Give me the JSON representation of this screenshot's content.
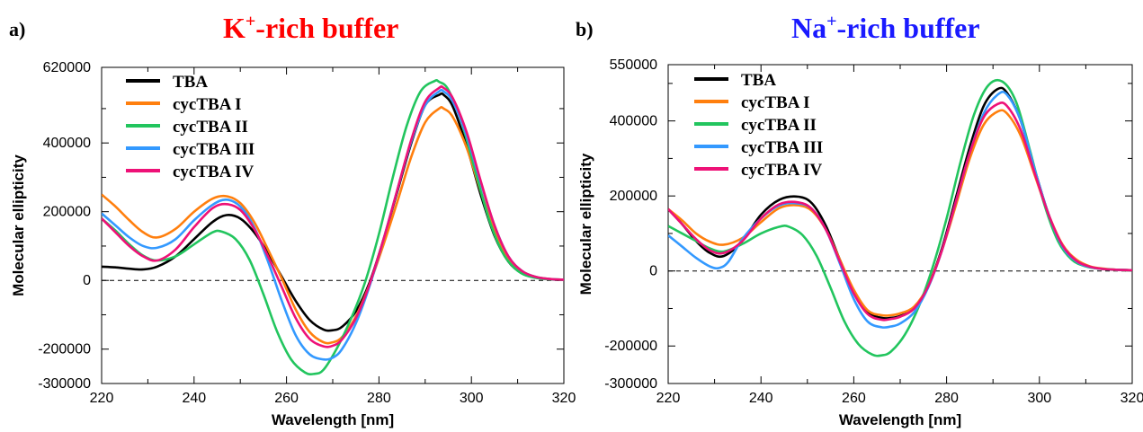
{
  "chart_data": [
    {
      "type": "line",
      "panel_label": "a)",
      "title_main": "K",
      "title_sup": "+",
      "title_rest": "-rich buffer",
      "title_color": "#ff0000",
      "xlabel": "Wavelength [nm]",
      "ylabel": "Molecular ellipticity",
      "xlim": [
        220,
        320
      ],
      "ylim": [
        -300000,
        620000
      ],
      "x_ticks": [
        220,
        240,
        260,
        280,
        300,
        320
      ],
      "x_tick_labels": [
        "220",
        "240",
        "260",
        "280",
        "300",
        "320"
      ],
      "y_ticks": [
        -300000,
        -200000,
        0,
        200000,
        400000,
        620000
      ],
      "y_tick_labels": [
        "-300000",
        "-200000",
        "0",
        "200000",
        "400000",
        "620000"
      ],
      "zero_line": true,
      "grid": false,
      "legend_position": "top-left",
      "series": [
        {
          "name": "TBA",
          "color": "#000000",
          "x": [
            220,
            223,
            226,
            229,
            232,
            236,
            240,
            244,
            247,
            250,
            253,
            256,
            259,
            262,
            265,
            268,
            270,
            272,
            275,
            278,
            281,
            284,
            287,
            290,
            293,
            294,
            296,
            299,
            302,
            305,
            308,
            311,
            314,
            317,
            320
          ],
          "y": [
            40000,
            38000,
            34000,
            32000,
            40000,
            70000,
            120000,
            170000,
            190000,
            180000,
            140000,
            80000,
            10000,
            -60000,
            -115000,
            -143000,
            -145000,
            -135000,
            -90000,
            -5000,
            120000,
            260000,
            400000,
            510000,
            540000,
            540000,
            505000,
            390000,
            250000,
            130000,
            55000,
            20000,
            8000,
            3000,
            2000
          ]
        },
        {
          "name": "cycTBA I",
          "color": "#ff7f0e",
          "x": [
            220,
            223,
            226,
            229,
            232,
            236,
            240,
            244,
            247,
            250,
            253,
            256,
            259,
            262,
            265,
            268,
            270,
            272,
            275,
            278,
            281,
            284,
            287,
            290,
            293,
            294,
            296,
            299,
            302,
            305,
            308,
            311,
            314,
            317,
            320
          ],
          "y": [
            250000,
            215000,
            175000,
            140000,
            125000,
            150000,
            200000,
            238000,
            245000,
            225000,
            170000,
            90000,
            5000,
            -85000,
            -150000,
            -180000,
            -180000,
            -165000,
            -105000,
            -10000,
            105000,
            230000,
            360000,
            460000,
            500000,
            500000,
            475000,
            385000,
            260000,
            145000,
            65000,
            25000,
            10000,
            4000,
            2000
          ]
        },
        {
          "name": "cycTBA II",
          "color": "#22c55e",
          "x": [
            220,
            223,
            226,
            229,
            232,
            236,
            240,
            244,
            246,
            249,
            252,
            255,
            258,
            261,
            264,
            266,
            268,
            271,
            274,
            277,
            280,
            283,
            286,
            289,
            292,
            293,
            295,
            298,
            301,
            304,
            307,
            310,
            313,
            316,
            320
          ],
          "y": [
            180000,
            145000,
            105000,
            72000,
            58000,
            70000,
            105000,
            140000,
            142000,
            120000,
            60000,
            -40000,
            -150000,
            -230000,
            -268000,
            -272000,
            -260000,
            -195000,
            -110000,
            -5000,
            135000,
            300000,
            450000,
            550000,
            580000,
            578000,
            555000,
            455000,
            310000,
            170000,
            75000,
            28000,
            10000,
            4000,
            2000
          ]
        },
        {
          "name": "cycTBA III",
          "color": "#3399ff",
          "x": [
            220,
            223,
            226,
            229,
            232,
            236,
            240,
            244,
            247,
            250,
            253,
            256,
            259,
            262,
            265,
            268,
            270,
            272,
            275,
            278,
            281,
            284,
            287,
            290,
            293,
            294,
            296,
            299,
            302,
            305,
            308,
            311,
            314,
            317,
            320
          ],
          "y": [
            195000,
            160000,
            125000,
            100000,
            95000,
            120000,
            175000,
            220000,
            235000,
            215000,
            155000,
            55000,
            -60000,
            -160000,
            -215000,
            -230000,
            -225000,
            -200000,
            -125000,
            -15000,
            120000,
            265000,
            405000,
            510000,
            550000,
            550000,
            520000,
            420000,
            285000,
            160000,
            70000,
            27000,
            10000,
            4000,
            2000
          ]
        },
        {
          "name": "cycTBA IV",
          "color": "#ee1177",
          "x": [
            220,
            223,
            226,
            229,
            232,
            236,
            240,
            244,
            247,
            250,
            253,
            256,
            259,
            262,
            265,
            268,
            270,
            272,
            275,
            278,
            281,
            284,
            287,
            290,
            293,
            294,
            296,
            299,
            302,
            305,
            308,
            311,
            314,
            317,
            320
          ],
          "y": [
            180000,
            140000,
            100000,
            70000,
            58000,
            90000,
            155000,
            210000,
            222000,
            205000,
            150000,
            70000,
            -20000,
            -110000,
            -170000,
            -192000,
            -190000,
            -172000,
            -110000,
            -10000,
            120000,
            265000,
            410000,
            520000,
            560000,
            560000,
            530000,
            430000,
            290000,
            160000,
            70000,
            27000,
            10000,
            4000,
            2000
          ]
        }
      ]
    },
    {
      "type": "line",
      "panel_label": "b)",
      "title_main": "Na",
      "title_sup": "+",
      "title_rest": "-rich buffer",
      "title_color": "#1a1aff",
      "xlabel": "Wavelength [nm]",
      "ylabel": "Molecular ellipticity",
      "xlim": [
        220,
        320
      ],
      "ylim": [
        -300000,
        550000
      ],
      "x_ticks": [
        220,
        240,
        260,
        280,
        300,
        320
      ],
      "x_tick_labels": [
        "220",
        "240",
        "260",
        "280",
        "300",
        "320"
      ],
      "y_ticks": [
        -300000,
        -200000,
        0,
        200000,
        400000,
        550000
      ],
      "y_tick_labels": [
        "-300000",
        "-200000",
        "0",
        "200000",
        "400000",
        "550000"
      ],
      "zero_line": true,
      "grid": false,
      "legend_position": "top-left",
      "series": [
        {
          "name": "TBA",
          "color": "#000000",
          "x": [
            220,
            223,
            226,
            229,
            232,
            236,
            240,
            244,
            248,
            251,
            254,
            257,
            260,
            263,
            266,
            268,
            270,
            273,
            276,
            279,
            282,
            285,
            288,
            291,
            293,
            296,
            299,
            302,
            305,
            308,
            311,
            314,
            317,
            320
          ],
          "y": [
            165000,
            125000,
            80000,
            48000,
            40000,
            80000,
            150000,
            190000,
            198000,
            180000,
            120000,
            30000,
            -55000,
            -110000,
            -125000,
            -125000,
            -120000,
            -100000,
            -40000,
            60000,
            195000,
            330000,
            440000,
            485000,
            475000,
            400000,
            270000,
            150000,
            65000,
            25000,
            10000,
            5000,
            3000,
            2000
          ]
        },
        {
          "name": "cycTBA I",
          "color": "#ff7f0e",
          "x": [
            220,
            223,
            226,
            229,
            232,
            236,
            240,
            244,
            248,
            251,
            254,
            257,
            260,
            263,
            266,
            268,
            270,
            273,
            276,
            279,
            282,
            285,
            288,
            291,
            293,
            296,
            299,
            302,
            305,
            308,
            311,
            314,
            317,
            320
          ],
          "y": [
            165000,
            135000,
            100000,
            78000,
            70000,
            88000,
            130000,
            168000,
            175000,
            160000,
            110000,
            30000,
            -50000,
            -105000,
            -118000,
            -118000,
            -113000,
            -95000,
            -40000,
            55000,
            175000,
            300000,
            390000,
            425000,
            420000,
            360000,
            255000,
            150000,
            70000,
            30000,
            12000,
            6000,
            3000,
            2000
          ]
        },
        {
          "name": "cycTBA II",
          "color": "#22c55e",
          "x": [
            220,
            223,
            226,
            229,
            232,
            236,
            240,
            244,
            246,
            249,
            252,
            255,
            258,
            261,
            264,
            266,
            268,
            271,
            274,
            277,
            280,
            283,
            286,
            289,
            292,
            295,
            298,
            301,
            304,
            307,
            310,
            313,
            316,
            320
          ],
          "y": [
            120000,
            100000,
            80000,
            60000,
            52000,
            72000,
            100000,
            118000,
            118000,
            95000,
            40000,
            -45000,
            -135000,
            -195000,
            -223000,
            -225000,
            -215000,
            -170000,
            -95000,
            10000,
            140000,
            290000,
            420000,
            495000,
            505000,
            450000,
            320000,
            180000,
            80000,
            30000,
            12000,
            6000,
            3000,
            2000
          ]
        },
        {
          "name": "cycTBA III",
          "color": "#3399ff",
          "x": [
            220,
            223,
            226,
            229,
            231,
            233,
            236,
            240,
            244,
            248,
            251,
            254,
            257,
            260,
            263,
            266,
            268,
            270,
            273,
            276,
            279,
            282,
            285,
            288,
            291,
            293,
            296,
            299,
            302,
            305,
            308,
            311,
            314,
            317,
            320
          ],
          "y": [
            95000,
            65000,
            35000,
            12000,
            8000,
            25000,
            85000,
            140000,
            175000,
            180000,
            165000,
            110000,
            20000,
            -75000,
            -135000,
            -150000,
            -148000,
            -140000,
            -110000,
            -45000,
            55000,
            185000,
            315000,
            420000,
            470000,
            470000,
            400000,
            270000,
            150000,
            65000,
            25000,
            10000,
            5000,
            3000,
            2000
          ]
        },
        {
          "name": "cycTBA IV",
          "color": "#ee1177",
          "x": [
            220,
            223,
            226,
            229,
            232,
            236,
            240,
            244,
            248,
            251,
            254,
            257,
            260,
            263,
            266,
            268,
            270,
            273,
            276,
            279,
            282,
            285,
            288,
            291,
            293,
            296,
            299,
            302,
            305,
            308,
            311,
            314,
            317,
            320
          ],
          "y": [
            165000,
            125000,
            85000,
            55000,
            48000,
            80000,
            140000,
            178000,
            183000,
            165000,
            110000,
            25000,
            -60000,
            -115000,
            -130000,
            -128000,
            -122000,
            -100000,
            -42000,
            55000,
            185000,
            315000,
            410000,
            445000,
            440000,
            375000,
            260000,
            150000,
            68000,
            27000,
            11000,
            5000,
            3000,
            2000
          ]
        }
      ]
    }
  ]
}
